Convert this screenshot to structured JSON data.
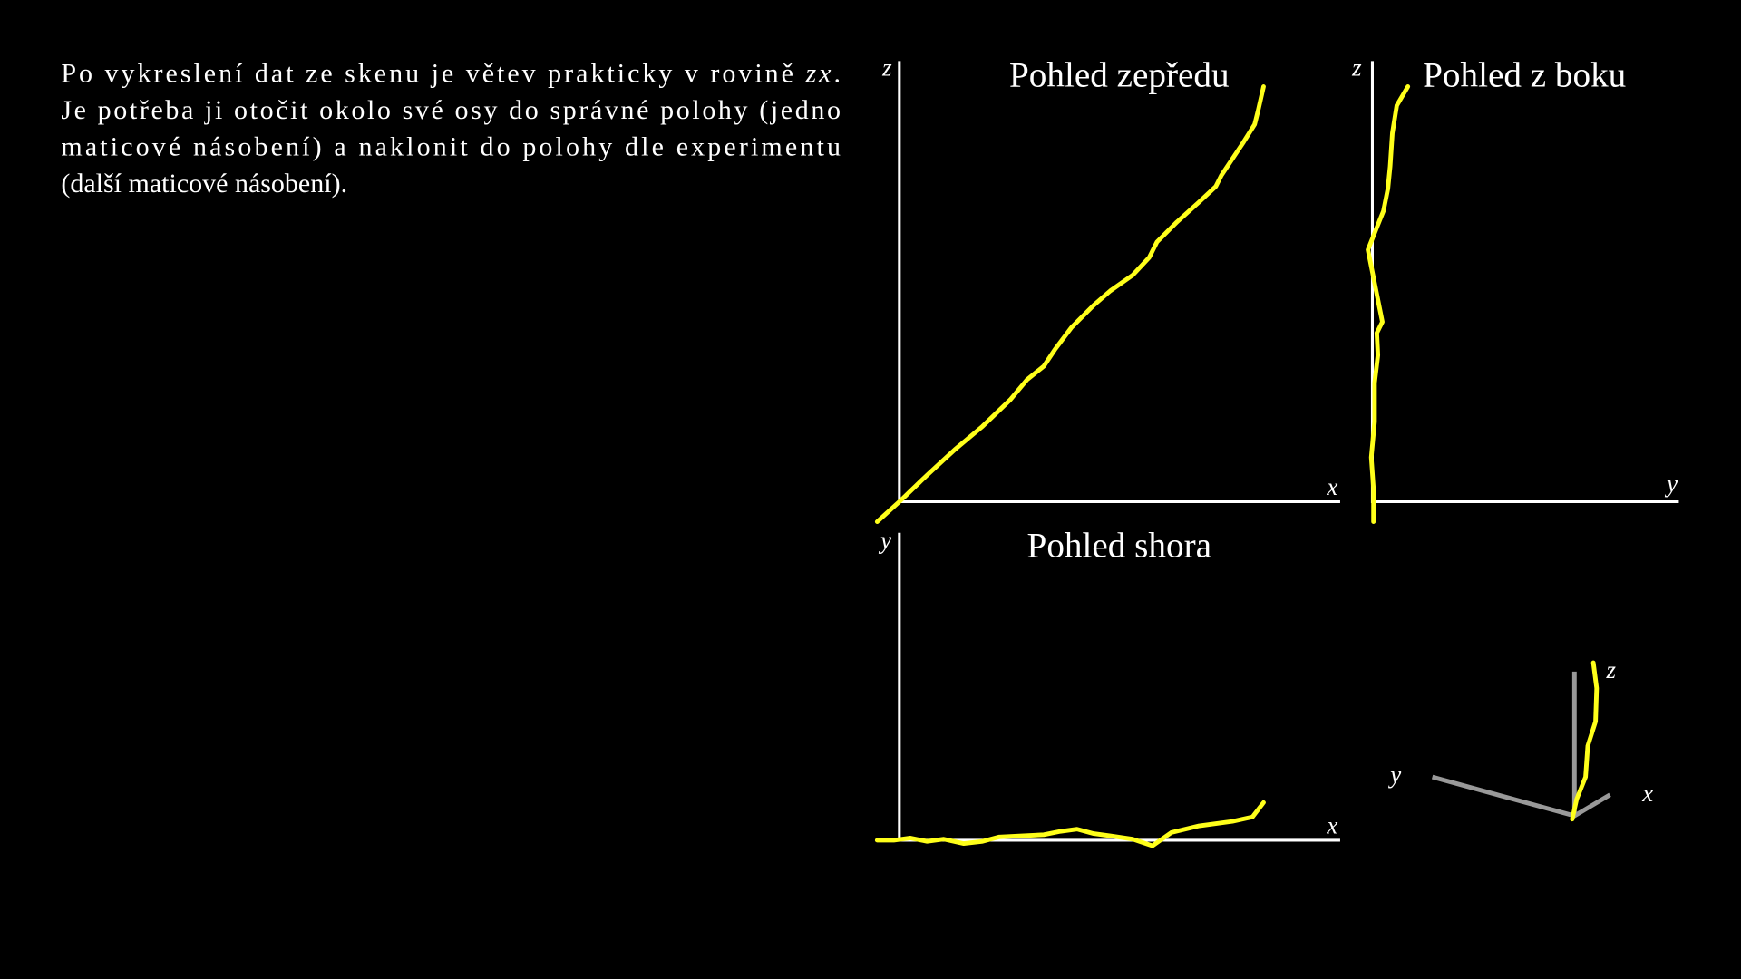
{
  "paragraph": {
    "lines": [
      [
        "Po vykreslení dat ze skenu je větev prakticky v rovině ",
        "zx",
        "."
      ],
      "Je potřeba ji otočit okolo své osy do správné polohy (jedno",
      "maticové násobení) a naklonit do polohy dle experimentu",
      "(další maticové násobení)."
    ]
  },
  "front_view": {
    "title": "Pohled zepředu",
    "vertical_axis": "z",
    "horizontal_axis": "x"
  },
  "side_view": {
    "title": "Pohled z boku",
    "vertical_axis": "z",
    "horizontal_axis": "y"
  },
  "top_view": {
    "title": "Pohled shora",
    "vertical_axis": "y",
    "horizontal_axis": "x"
  },
  "view_3d": {
    "axes": [
      "z",
      "y",
      "x"
    ]
  }
}
